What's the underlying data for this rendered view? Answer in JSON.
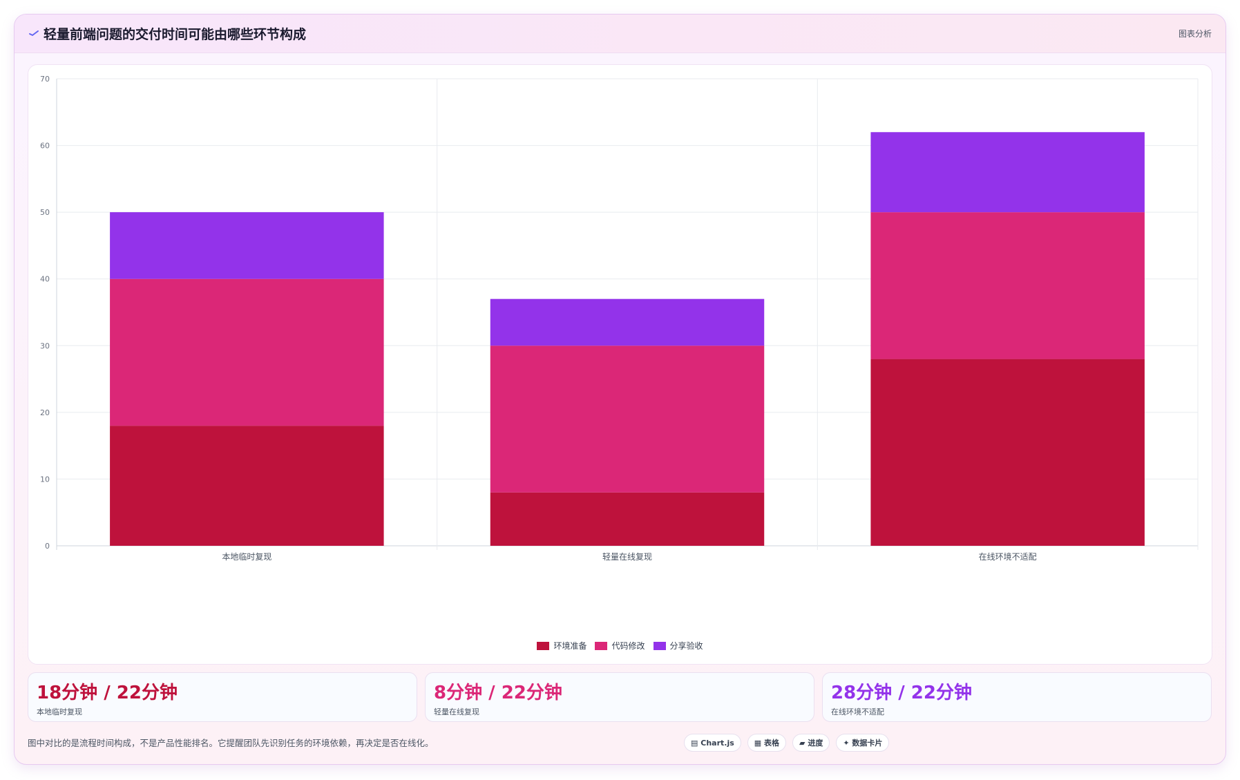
{
  "header": {
    "title": "轻量前端问题的交付时间可能由哪些环节构成",
    "icon": "trend-icon",
    "action_label": "图表分析"
  },
  "chart_data": {
    "type": "bar",
    "stacked": true,
    "categories": [
      "本地临时复现",
      "轻量在线复现",
      "在线环境不适配"
    ],
    "series": [
      {
        "name": "环境准备",
        "color": "#be123c",
        "values": [
          18,
          8,
          28
        ]
      },
      {
        "name": "代码修改",
        "color": "#db2777",
        "values": [
          22,
          22,
          22
        ]
      },
      {
        "name": "分享验收",
        "color": "#9333ea",
        "values": [
          10,
          7,
          12
        ]
      }
    ],
    "ylim": [
      0,
      70
    ],
    "yticks": [
      0,
      10,
      20,
      30,
      40,
      50,
      60,
      70
    ],
    "grid": true,
    "legend": "bottom-center"
  },
  "stats": [
    {
      "value": "18分钟 / 22分钟",
      "label": "本地临时复现",
      "color": "#be123c"
    },
    {
      "value": "8分钟 / 22分钟",
      "label": "轻量在线复现",
      "color": "#db2777"
    },
    {
      "value": "28分钟 / 22分钟",
      "label": "在线环境不适配",
      "color": "#9333ea"
    }
  ],
  "footnote": "图中对比的是流程时间构成，不是产品性能排名。它提醒团队先识别任务的环境依赖，再决定是否在线化。",
  "chips": [
    {
      "icon": "chart-icon",
      "glyph": "▤",
      "label": "Chart.js"
    },
    {
      "icon": "table-icon",
      "glyph": "▦",
      "label": "表格"
    },
    {
      "icon": "progress-icon",
      "glyph": "▰",
      "label": "进度"
    },
    {
      "icon": "sparkle-icon",
      "glyph": "✦",
      "label": "数据卡片"
    }
  ]
}
